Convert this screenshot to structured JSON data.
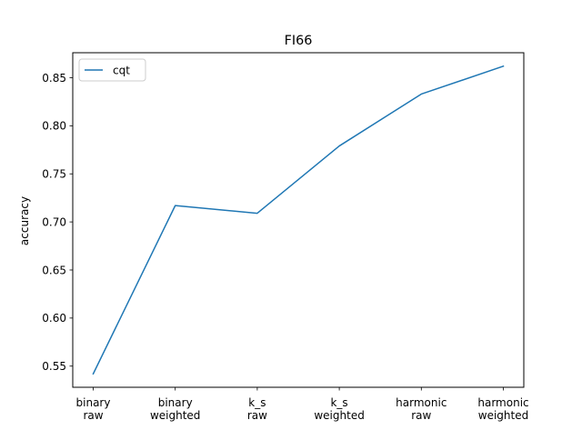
{
  "chart_data": {
    "type": "line",
    "title": "FI66",
    "xlabel": "",
    "ylabel": "accuracy",
    "categories": [
      [
        "binary",
        "raw"
      ],
      [
        "binary",
        "weighted"
      ],
      [
        "k_s",
        "raw"
      ],
      [
        "k_s",
        "weighted"
      ],
      [
        "harmonic",
        "raw"
      ],
      [
        "harmonic",
        "weighted"
      ]
    ],
    "series": [
      {
        "name": "cqt",
        "color": "#1f77b4",
        "values": [
          0.542,
          0.717,
          0.709,
          0.779,
          0.833,
          0.862
        ]
      }
    ],
    "ylim": [
      0.528,
      0.876
    ],
    "yticks": [
      "0.55",
      "0.60",
      "0.65",
      "0.70",
      "0.75",
      "0.80",
      "0.85"
    ],
    "grid": false,
    "legend": "top-left"
  }
}
